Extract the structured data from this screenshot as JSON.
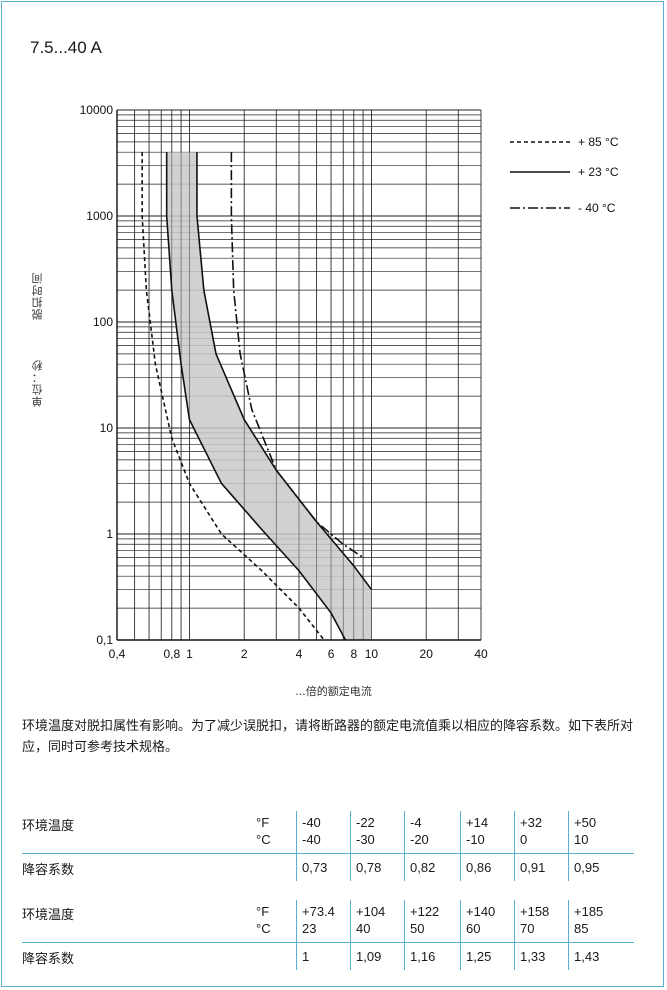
{
  "title": "7.5...40 A",
  "chart_data": {
    "type": "line",
    "x_scale": "log",
    "y_scale": "log",
    "xlim": [
      0.4,
      40
    ],
    "ylim": [
      0.1,
      10000
    ],
    "ylabel": "脱扣时间   单位：秒",
    "ylabel_text": "单位：秒",
    "ylabel_text2": "脱扣时间",
    "xlabel": "...倍的额定电流",
    "x_ticks": [
      "0,4",
      "0,8",
      "1",
      "2",
      "4",
      "6",
      "8",
      "10",
      "20",
      "40"
    ],
    "y_ticks": [
      "10000",
      "1000",
      "100",
      "10",
      "1",
      "0,1"
    ],
    "legend_position": "top-right",
    "grid": true,
    "series": [
      {
        "name": "+ 85 °C",
        "style": "dashed",
        "x": [
          0.55,
          0.55,
          0.58,
          0.65,
          0.8,
          1.0,
          1.5,
          2.5,
          4.0,
          5.5
        ],
        "y": [
          4000,
          1000,
          200,
          40,
          8,
          3,
          1,
          0.45,
          0.2,
          0.1
        ]
      },
      {
        "name": "+ 23 °C",
        "style": "solid",
        "label": "lower",
        "x": [
          0.75,
          0.75,
          0.8,
          0.9,
          1.0,
          1.5,
          2.5,
          4.0,
          6.0,
          7.2
        ],
        "y": [
          4000,
          1000,
          200,
          40,
          12,
          3,
          1.1,
          0.45,
          0.18,
          0.1
        ]
      },
      {
        "name": "+ 23 °C",
        "style": "solid",
        "label": "upper",
        "x": [
          1.1,
          1.1,
          1.2,
          1.4,
          2.0,
          3.0,
          5.0,
          8.0,
          10.0
        ],
        "y": [
          4000,
          1000,
          200,
          50,
          12,
          4,
          1.3,
          0.5,
          0.3
        ]
      },
      {
        "name": "- 40 °C",
        "style": "dashdot",
        "x": [
          1.7,
          1.7,
          1.75,
          1.9,
          2.2,
          3.0,
          5.0,
          7.0,
          9.0
        ],
        "y": [
          4000,
          1000,
          200,
          50,
          15,
          4,
          1.3,
          0.8,
          0.6
        ]
      }
    ],
    "band": {
      "x_left": [
        0.75,
        0.75,
        0.8,
        0.9,
        1.0,
        1.5,
        2.5,
        4.0,
        6.0,
        7.2
      ],
      "y_left": [
        4000,
        1000,
        200,
        40,
        12,
        3,
        1.1,
        0.45,
        0.18,
        0.1
      ],
      "x_right": [
        10.0,
        10.0,
        8.0,
        5.0,
        3.0,
        2.0,
        1.4,
        1.2,
        1.1,
        1.1
      ],
      "y_right": [
        0.1,
        0.3,
        0.5,
        1.3,
        4,
        12,
        50,
        200,
        1000,
        4000
      ]
    },
    "legend": [
      "+ 85 °C",
      "+ 23 °C",
      "- 40 °C"
    ]
  },
  "note": "环境温度对脱扣属性有影响。为了减少误脱扣，请将断路器的额定电流值乘以相应的降容系数。如下表所对应，同时可参考技术规格。",
  "table": {
    "temp_label": "环境温度",
    "factor_label": "降容系数",
    "unit_f": "°F",
    "unit_c": "°C",
    "block1": {
      "f": [
        "-40",
        "-22",
        "-4",
        "+14",
        "+32",
        "+50"
      ],
      "c": [
        "-40",
        "-30",
        "-20",
        "-10",
        "0",
        "10"
      ],
      "factor": [
        "0,73",
        "0,78",
        "0,82",
        "0,86",
        "0,91",
        "0,95"
      ]
    },
    "block2": {
      "f": [
        "+73.4",
        "+104",
        "+122",
        "+140",
        "+158",
        "+185"
      ],
      "c": [
        "23",
        "40",
        "50",
        "60",
        "70",
        "85"
      ],
      "factor": [
        "1",
        "1,09",
        "1,16",
        "1,25",
        "1,33",
        "1,43"
      ]
    }
  }
}
